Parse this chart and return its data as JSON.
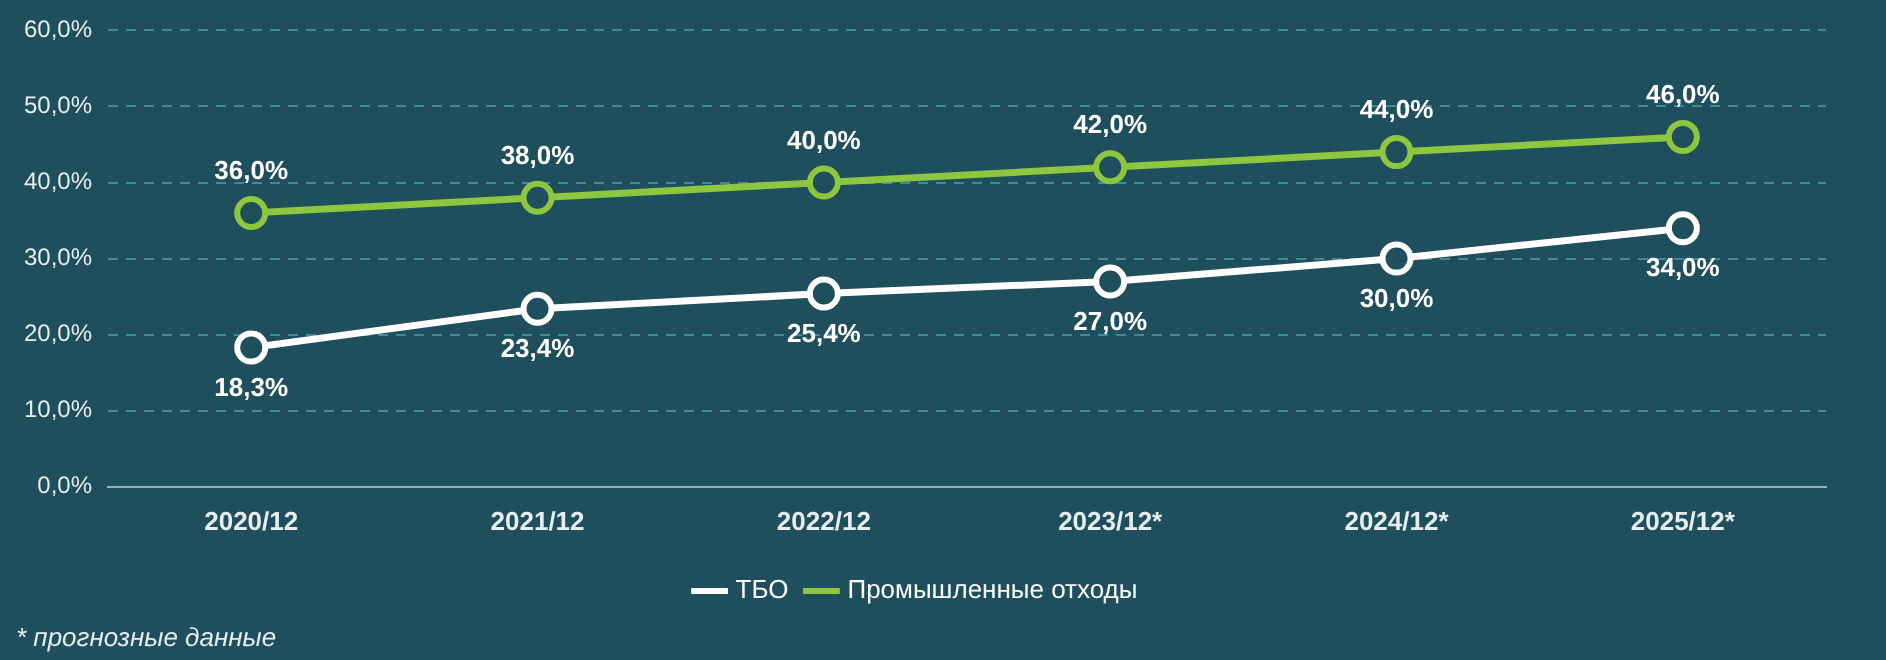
{
  "chart_data": {
    "type": "line",
    "categories": [
      "2020/12",
      "2021/12",
      "2022/12",
      "2023/12*",
      "2024/12*",
      "2025/12*"
    ],
    "series": [
      {
        "name": "ТБО",
        "color": "#ffffff",
        "values": [
          18.3,
          23.4,
          25.4,
          27.0,
          30.0,
          34.0
        ],
        "value_labels": [
          "18,3%",
          "23,4%",
          "25,4%",
          "27,0%",
          "30,0%",
          "34,0%"
        ]
      },
      {
        "name": "Промышленные отходы",
        "color": "#8dc63f",
        "values": [
          36.0,
          38.0,
          40.0,
          42.0,
          44.0,
          46.0
        ],
        "value_labels": [
          "36,0%",
          "38,0%",
          "40,0%",
          "42,0%",
          "44,0%",
          "46,0%"
        ]
      }
    ],
    "ylim": [
      0,
      60
    ],
    "yticks": [
      {
        "value": 0,
        "label": "0,0%"
      },
      {
        "value": 10,
        "label": "10,0%"
      },
      {
        "value": 20,
        "label": "20,0%"
      },
      {
        "value": 30,
        "label": "30,0%"
      },
      {
        "value": 40,
        "label": "40,0%"
      },
      {
        "value": 50,
        "label": "50,0%"
      },
      {
        "value": 60,
        "label": "60,0%"
      }
    ],
    "grid": "y",
    "legend": "bottom",
    "marker": "circle",
    "line_style": "solid",
    "annotations": [
      "* прогнозные данные"
    ]
  }
}
